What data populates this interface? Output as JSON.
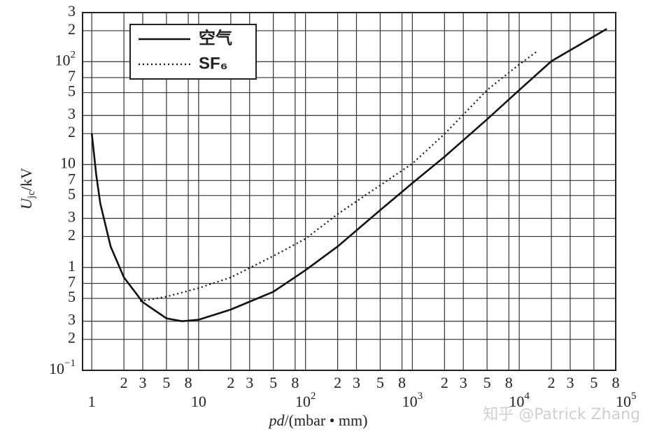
{
  "chart_data": {
    "type": "line",
    "log_x": true,
    "log_y": true,
    "grid": true,
    "y_label": "U",
    "y_label_sub": "jc",
    "y_label_unit": "/kV",
    "x_label": "pd",
    "x_label_unit": "/(mbar • mm)",
    "watermark": "知乎 @Patrick Zhang",
    "xlim": [
      0.82,
      80000
    ],
    "ylim": [
      0.1,
      300
    ],
    "xticks": [
      1,
      {
        "value": 2,
        "label": "2"
      },
      {
        "value": 3,
        "label": "3"
      },
      {
        "value": 5,
        "label": "5"
      },
      {
        "value": 8,
        "label": "8"
      },
      10,
      {
        "value": 20,
        "label": "2"
      },
      {
        "value": 30,
        "label": "3"
      },
      {
        "value": 50,
        "label": "5"
      },
      {
        "value": 80,
        "label": "8"
      },
      {
        "value": 100,
        "label": "10",
        "superscript": "2"
      },
      {
        "value": 200,
        "label": "2"
      },
      {
        "value": 300,
        "label": "3"
      },
      {
        "value": 500,
        "label": "5"
      },
      {
        "value": 800,
        "label": "8"
      },
      {
        "value": 1000,
        "label": "10",
        "superscript": "3"
      },
      {
        "value": 2000,
        "label": "2"
      },
      {
        "value": 3000,
        "label": "3"
      },
      {
        "value": 5000,
        "label": "5"
      },
      {
        "value": 8000,
        "label": "8"
      },
      {
        "value": 10000,
        "label": "10",
        "superscript": "4"
      },
      {
        "value": 20000,
        "label": "2"
      },
      {
        "value": 30000,
        "label": "3"
      },
      {
        "value": 50000,
        "label": "5"
      },
      {
        "value": 80000,
        "label": "8"
      },
      {
        "value": 100000,
        "label": "10",
        "superscript": "5"
      }
    ],
    "yticks": [
      {
        "value": 0.1,
        "label": "10",
        "superscript": "−1"
      },
      {
        "value": 0.2,
        "label": "2"
      },
      {
        "value": 0.3,
        "label": "3"
      },
      {
        "value": 0.5,
        "label": "5"
      },
      {
        "value": 0.7,
        "label": "7"
      },
      1,
      {
        "value": 2,
        "label": "2"
      },
      {
        "value": 3,
        "label": "3"
      },
      {
        "value": 5,
        "label": "5"
      },
      {
        "value": 7,
        "label": "7"
      },
      10,
      {
        "value": 20,
        "label": "2"
      },
      {
        "value": 30,
        "label": "3"
      },
      {
        "value": 50,
        "label": "5"
      },
      {
        "value": 70,
        "label": "7"
      },
      {
        "value": 100,
        "label": "10",
        "superscript": "2"
      },
      {
        "value": 200,
        "label": "2"
      },
      {
        "value": 300,
        "label": "3"
      }
    ],
    "series": [
      {
        "name": "空气",
        "color": "#111111",
        "style": "solid",
        "x": [
          1,
          1.1,
          1.2,
          1.5,
          2,
          3,
          5,
          7,
          10,
          20,
          50,
          100,
          200,
          500,
          1000,
          2000,
          5000,
          10000,
          20000,
          66000
        ],
        "values": [
          20,
          8,
          4.2,
          1.6,
          0.8,
          0.46,
          0.32,
          0.3,
          0.31,
          0.39,
          0.58,
          0.94,
          1.6,
          3.6,
          6.6,
          11.9,
          27.5,
          53,
          101,
          208
        ]
      },
      {
        "name": "SF₆",
        "color": "#111111",
        "style": "dotted",
        "x": [
          2.83,
          5,
          10,
          20,
          50,
          100,
          200,
          500,
          1000,
          2000,
          5000,
          10000,
          15000
        ],
        "values": [
          0.47,
          0.52,
          0.63,
          0.8,
          1.29,
          1.9,
          3.3,
          6.3,
          10.2,
          19.8,
          53,
          94,
          128
        ]
      }
    ]
  }
}
